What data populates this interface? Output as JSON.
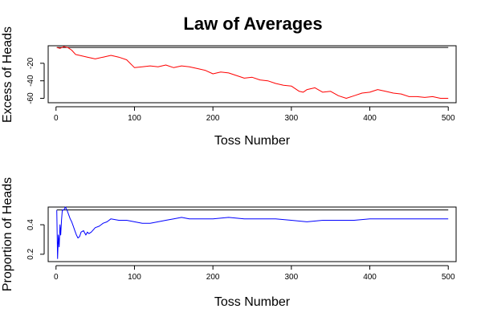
{
  "chart_data": {
    "title": "Law of Averages",
    "panels": [
      {
        "type": "line",
        "xlabel": "Toss Number",
        "ylabel": "Excess of Heads",
        "xlim": [
          -10,
          510
        ],
        "ylim": [
          -65,
          0
        ],
        "xticks": [
          0,
          100,
          200,
          300,
          400,
          500
        ],
        "yticks": [
          -20,
          -40,
          -60
        ],
        "grid": false,
        "reference_line": {
          "y": -2,
          "color": "#000000"
        },
        "series": [
          {
            "color": "#ff0000",
            "x": [
              1,
              5,
              10,
              15,
              20,
              25,
              30,
              40,
              50,
              60,
              70,
              80,
              90,
              100,
              110,
              120,
              130,
              140,
              150,
              160,
              170,
              180,
              190,
              200,
              210,
              220,
              230,
              240,
              250,
              260,
              270,
              280,
              290,
              300,
              310,
              315,
              320,
              330,
              340,
              350,
              360,
              370,
              380,
              390,
              400,
              410,
              420,
              430,
              440,
              450,
              460,
              470,
              480,
              490,
              500
            ],
            "y": [
              -2,
              -3,
              -1,
              -2,
              -5,
              -10,
              -11,
              -13,
              -15,
              -13,
              -11,
              -13,
              -16,
              -25,
              -24,
              -23,
              -24,
              -22,
              -25,
              -23,
              -24,
              -26,
              -28,
              -32,
              -30,
              -31,
              -34,
              -37,
              -36,
              -39,
              -40,
              -43,
              -45,
              -46,
              -52,
              -53,
              -50,
              -48,
              -53,
              -52,
              -57,
              -60,
              -57,
              -54,
              -53,
              -50,
              -52,
              -54,
              -55,
              -58,
              -58,
              -59,
              -58,
              -60,
              -60
            ]
          }
        ]
      },
      {
        "type": "line",
        "xlabel": "Toss Number",
        "ylabel": "Proportion of Heads",
        "xlim": [
          -10,
          510
        ],
        "ylim": [
          0.15,
          0.52
        ],
        "xticks": [
          0,
          100,
          200,
          300,
          400,
          500
        ],
        "yticks": [
          0.2,
          0.4
        ],
        "grid": false,
        "reference_line": {
          "y": 0.5,
          "color": "#000000"
        },
        "series": [
          {
            "color": "#0000ff",
            "x": [
              1,
              2,
              3,
              4,
              5,
              6,
              7,
              8,
              10,
              12,
              14,
              16,
              18,
              20,
              22,
              24,
              26,
              28,
              30,
              32,
              35,
              38,
              40,
              42,
              45,
              50,
              55,
              60,
              65,
              70,
              80,
              90,
              100,
              110,
              120,
              130,
              140,
              150,
              160,
              170,
              180,
              190,
              200,
              220,
              240,
              260,
              280,
              300,
              320,
              340,
              360,
              380,
              400,
              420,
              440,
              460,
              480,
              500
            ],
            "y": [
              0.5,
              0.17,
              0.33,
              0.25,
              0.4,
              0.33,
              0.43,
              0.5,
              0.5,
              0.52,
              0.5,
              0.47,
              0.44,
              0.42,
              0.39,
              0.36,
              0.33,
              0.31,
              0.32,
              0.35,
              0.36,
              0.33,
              0.35,
              0.34,
              0.35,
              0.38,
              0.39,
              0.41,
              0.42,
              0.44,
              0.43,
              0.43,
              0.42,
              0.41,
              0.41,
              0.42,
              0.43,
              0.44,
              0.45,
              0.44,
              0.44,
              0.44,
              0.44,
              0.45,
              0.44,
              0.44,
              0.44,
              0.43,
              0.42,
              0.43,
              0.43,
              0.43,
              0.44,
              0.44,
              0.44,
              0.44,
              0.44,
              0.44
            ]
          }
        ]
      }
    ]
  }
}
